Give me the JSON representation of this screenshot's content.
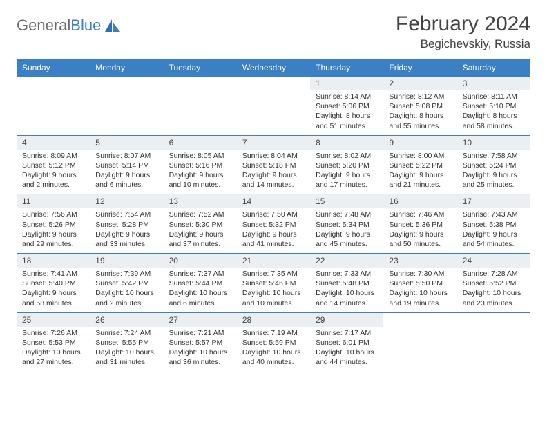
{
  "brand": {
    "word1": "General",
    "word2": "Blue"
  },
  "title": "February 2024",
  "location": "Begichevskiy, Russia",
  "day_headers": [
    "Sunday",
    "Monday",
    "Tuesday",
    "Wednesday",
    "Thursday",
    "Friday",
    "Saturday"
  ],
  "colors": {
    "header_bg": "#3b7fc4",
    "header_text": "#ffffff",
    "daynum_bg": "#eceff1",
    "border_top": "#3b7fc4",
    "body_bg": "#ffffff",
    "text": "#333333",
    "logo_gray": "#6b6b6b",
    "logo_blue": "#3b7fc4"
  },
  "typography": {
    "title_fontsize": 30,
    "location_fontsize": 17,
    "header_fontsize": 12,
    "daynum_fontsize": 12,
    "detail_fontsize": 10.5
  },
  "weeks": [
    {
      "nums": [
        "",
        "",
        "",
        "",
        "1",
        "2",
        "3"
      ],
      "sunrise": [
        "",
        "",
        "",
        "",
        "Sunrise: 8:14 AM",
        "Sunrise: 8:12 AM",
        "Sunrise: 8:11 AM"
      ],
      "sunset": [
        "",
        "",
        "",
        "",
        "Sunset: 5:06 PM",
        "Sunset: 5:08 PM",
        "Sunset: 5:10 PM"
      ],
      "daylight": [
        "",
        "",
        "",
        "",
        "Daylight: 8 hours and 51 minutes.",
        "Daylight: 8 hours and 55 minutes.",
        "Daylight: 8 hours and 58 minutes."
      ]
    },
    {
      "nums": [
        "4",
        "5",
        "6",
        "7",
        "8",
        "9",
        "10"
      ],
      "sunrise": [
        "Sunrise: 8:09 AM",
        "Sunrise: 8:07 AM",
        "Sunrise: 8:05 AM",
        "Sunrise: 8:04 AM",
        "Sunrise: 8:02 AM",
        "Sunrise: 8:00 AM",
        "Sunrise: 7:58 AM"
      ],
      "sunset": [
        "Sunset: 5:12 PM",
        "Sunset: 5:14 PM",
        "Sunset: 5:16 PM",
        "Sunset: 5:18 PM",
        "Sunset: 5:20 PM",
        "Sunset: 5:22 PM",
        "Sunset: 5:24 PM"
      ],
      "daylight": [
        "Daylight: 9 hours and 2 minutes.",
        "Daylight: 9 hours and 6 minutes.",
        "Daylight: 9 hours and 10 minutes.",
        "Daylight: 9 hours and 14 minutes.",
        "Daylight: 9 hours and 17 minutes.",
        "Daylight: 9 hours and 21 minutes.",
        "Daylight: 9 hours and 25 minutes."
      ]
    },
    {
      "nums": [
        "11",
        "12",
        "13",
        "14",
        "15",
        "16",
        "17"
      ],
      "sunrise": [
        "Sunrise: 7:56 AM",
        "Sunrise: 7:54 AM",
        "Sunrise: 7:52 AM",
        "Sunrise: 7:50 AM",
        "Sunrise: 7:48 AM",
        "Sunrise: 7:46 AM",
        "Sunrise: 7:43 AM"
      ],
      "sunset": [
        "Sunset: 5:26 PM",
        "Sunset: 5:28 PM",
        "Sunset: 5:30 PM",
        "Sunset: 5:32 PM",
        "Sunset: 5:34 PM",
        "Sunset: 5:36 PM",
        "Sunset: 5:38 PM"
      ],
      "daylight": [
        "Daylight: 9 hours and 29 minutes.",
        "Daylight: 9 hours and 33 minutes.",
        "Daylight: 9 hours and 37 minutes.",
        "Daylight: 9 hours and 41 minutes.",
        "Daylight: 9 hours and 45 minutes.",
        "Daylight: 9 hours and 50 minutes.",
        "Daylight: 9 hours and 54 minutes."
      ]
    },
    {
      "nums": [
        "18",
        "19",
        "20",
        "21",
        "22",
        "23",
        "24"
      ],
      "sunrise": [
        "Sunrise: 7:41 AM",
        "Sunrise: 7:39 AM",
        "Sunrise: 7:37 AM",
        "Sunrise: 7:35 AM",
        "Sunrise: 7:33 AM",
        "Sunrise: 7:30 AM",
        "Sunrise: 7:28 AM"
      ],
      "sunset": [
        "Sunset: 5:40 PM",
        "Sunset: 5:42 PM",
        "Sunset: 5:44 PM",
        "Sunset: 5:46 PM",
        "Sunset: 5:48 PM",
        "Sunset: 5:50 PM",
        "Sunset: 5:52 PM"
      ],
      "daylight": [
        "Daylight: 9 hours and 58 minutes.",
        "Daylight: 10 hours and 2 minutes.",
        "Daylight: 10 hours and 6 minutes.",
        "Daylight: 10 hours and 10 minutes.",
        "Daylight: 10 hours and 14 minutes.",
        "Daylight: 10 hours and 19 minutes.",
        "Daylight: 10 hours and 23 minutes."
      ]
    },
    {
      "nums": [
        "25",
        "26",
        "27",
        "28",
        "29",
        "",
        ""
      ],
      "sunrise": [
        "Sunrise: 7:26 AM",
        "Sunrise: 7:24 AM",
        "Sunrise: 7:21 AM",
        "Sunrise: 7:19 AM",
        "Sunrise: 7:17 AM",
        "",
        ""
      ],
      "sunset": [
        "Sunset: 5:53 PM",
        "Sunset: 5:55 PM",
        "Sunset: 5:57 PM",
        "Sunset: 5:59 PM",
        "Sunset: 6:01 PM",
        "",
        ""
      ],
      "daylight": [
        "Daylight: 10 hours and 27 minutes.",
        "Daylight: 10 hours and 31 minutes.",
        "Daylight: 10 hours and 36 minutes.",
        "Daylight: 10 hours and 40 minutes.",
        "Daylight: 10 hours and 44 minutes.",
        "",
        ""
      ]
    }
  ]
}
